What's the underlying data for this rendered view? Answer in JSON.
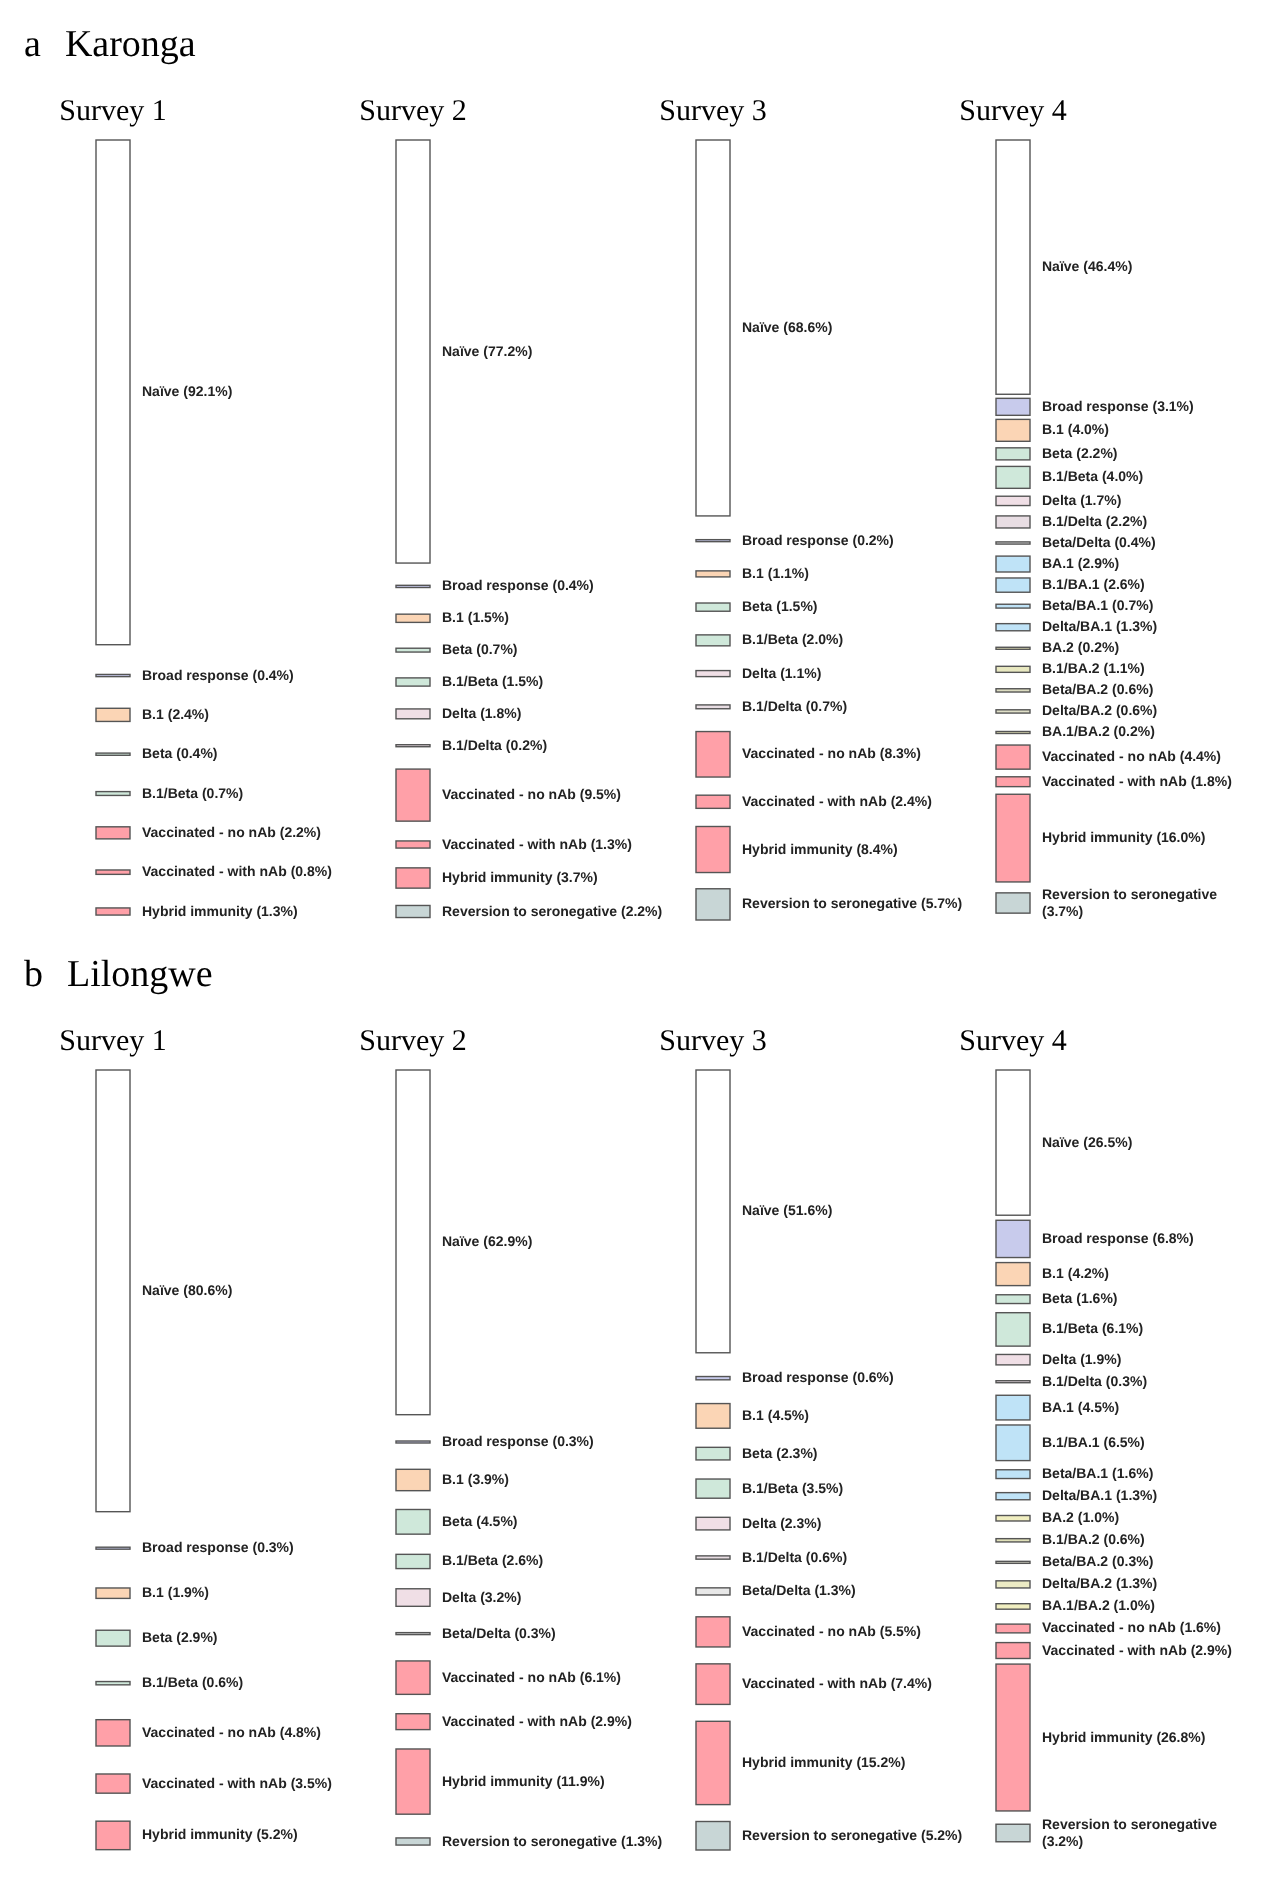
{
  "chart_data": [
    {
      "type": "other",
      "subtitle": "Karonga",
      "annotations": [
        "a"
      ],
      "title": "Survey 1",
      "categories": [
        "Naïve",
        "Broad response",
        "B.1",
        "Beta",
        "B.1/Beta",
        "Vaccinated - no nAb",
        "Vaccinated - with nAb",
        "Hybrid immunity"
      ],
      "values": [
        92.1,
        0.4,
        2.4,
        0.4,
        0.7,
        2.2,
        0.8,
        1.3
      ],
      "value_labels": [
        "(92.1%)",
        "(0.4%)",
        "(2.4%)",
        "(0.4%)",
        "(0.7%)",
        "(2.2%)",
        "(0.8%)",
        "(1.3%)"
      ],
      "colors": [
        "#ffffff",
        "#c8cbec",
        "#fbd5b5",
        "#cfe8da",
        "#cfe8da",
        "#ffa0a8",
        "#ffa0a8",
        "#ffa0a8"
      ]
    },
    {
      "type": "other",
      "title": "Survey 2",
      "categories": [
        "Naïve",
        "Broad response",
        "B.1",
        "Beta",
        "B.1/Beta",
        "Delta",
        "B.1/Delta",
        "Vaccinated - no nAb",
        "Vaccinated - with nAb",
        "Hybrid immunity",
        "Reversion to seronegative"
      ],
      "values": [
        77.2,
        0.4,
        1.5,
        0.7,
        1.5,
        1.8,
        0.2,
        9.5,
        1.3,
        3.7,
        2.2
      ],
      "value_labels": [
        "(77.2%)",
        "(0.4%)",
        "(1.5%)",
        "(0.7%)",
        "(1.5%)",
        "(1.8%)",
        "(0.2%)",
        "(9.5%)",
        "(1.3%)",
        "(3.7%)",
        "(2.2%)"
      ],
      "colors": [
        "#ffffff",
        "#c8cbec",
        "#fbd5b5",
        "#cfe8da",
        "#cfe8da",
        "#f0dfe6",
        "#e8dde3",
        "#ffa0a8",
        "#ffa0a8",
        "#ffa0a8",
        "#c8d6d6"
      ]
    },
    {
      "type": "other",
      "title": "Survey 3",
      "categories": [
        "Naïve",
        "Broad response",
        "B.1",
        "Beta",
        "B.1/Beta",
        "Delta",
        "B.1/Delta",
        "Vaccinated - no nAb",
        "Vaccinated - with nAb",
        "Hybrid immunity",
        "Reversion to seronegative"
      ],
      "values": [
        68.6,
        0.2,
        1.1,
        1.5,
        2.0,
        1.1,
        0.7,
        8.3,
        2.4,
        8.4,
        5.7
      ],
      "value_labels": [
        "(68.6%)",
        "(0.2%)",
        "(1.1%)",
        "(1.5%)",
        "(2.0%)",
        "(1.1%)",
        "(0.7%)",
        "(8.3%)",
        "(2.4%)",
        "(8.4%)",
        "(5.7%)"
      ],
      "colors": [
        "#ffffff",
        "#c8cbec",
        "#fbd5b5",
        "#cfe8da",
        "#cfe8da",
        "#f0dfe6",
        "#e8dde3",
        "#ffa0a8",
        "#ffa0a8",
        "#ffa0a8",
        "#c8d6d6"
      ]
    },
    {
      "type": "other",
      "title": "Survey 4",
      "categories": [
        "Naïve",
        "Broad response",
        "B.1",
        "Beta",
        "B.1/Beta",
        "Delta",
        "B.1/Delta",
        "Beta/Delta",
        "BA.1",
        "B.1/BA.1",
        "Beta/BA.1",
        "Delta/BA.1",
        "BA.2",
        "B.1/BA.2",
        "Beta/BA.2",
        "Delta/BA.2",
        "BA.1/BA.2",
        "Vaccinated - no nAb",
        "Vaccinated - with nAb",
        "Hybrid immunity",
        "Reversion to seronegative"
      ],
      "values": [
        46.4,
        3.1,
        4.0,
        2.2,
        4.0,
        1.7,
        2.2,
        0.4,
        2.9,
        2.6,
        0.7,
        1.3,
        0.2,
        1.1,
        0.6,
        0.6,
        0.2,
        4.4,
        1.8,
        16.0,
        3.7
      ],
      "value_labels": [
        "(46.4%)",
        "(3.1%)",
        "(4.0%)",
        "(2.2%)",
        "(4.0%)",
        "(1.7%)",
        "(2.2%)",
        "(0.4%)",
        "(2.9%)",
        "(2.6%)",
        "(0.7%)",
        "(1.3%)",
        "(0.2%)",
        "(1.1%)",
        "(0.6%)",
        "(0.6%)",
        "(0.2%)",
        "(4.4%)",
        "(1.8%)",
        "(16.0%)",
        "(3.7%)"
      ],
      "colors": [
        "#ffffff",
        "#c8cbec",
        "#fbd5b5",
        "#cfe8da",
        "#cfe8da",
        "#f0dfe6",
        "#e8dde3",
        "#d8d8d8",
        "#bfe3f7",
        "#bfe3f7",
        "#bfe3f7",
        "#bfe3f7",
        "#f0eec0",
        "#e8e8c0",
        "#dcdcc0",
        "#e0e0c8",
        "#f0eec0",
        "#ffa0a8",
        "#ffa0a8",
        "#ffa0a8",
        "#c8d6d6"
      ]
    },
    {
      "type": "other",
      "subtitle": "Lilongwe",
      "annotations": [
        "b"
      ],
      "title": "Survey 1",
      "categories": [
        "Naïve",
        "Broad response",
        "B.1",
        "Beta",
        "B.1/Beta",
        "Vaccinated - no nAb",
        "Vaccinated - with nAb",
        "Hybrid immunity"
      ],
      "values": [
        80.6,
        0.3,
        1.9,
        2.9,
        0.6,
        4.8,
        3.5,
        5.2
      ],
      "value_labels": [
        "(80.6%)",
        "(0.3%)",
        "(1.9%)",
        "(2.9%)",
        "(0.6%)",
        "(4.8%)",
        "(3.5%)",
        "(5.2%)"
      ],
      "colors": [
        "#ffffff",
        "#c8cbec",
        "#fbd5b5",
        "#cfe8da",
        "#cfe8da",
        "#ffa0a8",
        "#ffa0a8",
        "#ffa0a8"
      ]
    },
    {
      "type": "other",
      "title": "Survey 2",
      "categories": [
        "Naïve",
        "Broad response",
        "B.1",
        "Beta",
        "B.1/Beta",
        "Delta",
        "Beta/Delta",
        "Vaccinated - no nAb",
        "Vaccinated - with nAb",
        "Hybrid immunity",
        "Reversion to seronegative"
      ],
      "values": [
        62.9,
        0.3,
        3.9,
        4.5,
        2.6,
        3.2,
        0.3,
        6.1,
        2.9,
        11.9,
        1.3
      ],
      "value_labels": [
        "(62.9%)",
        "(0.3%)",
        "(3.9%)",
        "(4.5%)",
        "(2.6%)",
        "(3.2%)",
        "(0.3%)",
        "(6.1%)",
        "(2.9%)",
        "(11.9%)",
        "(1.3%)"
      ],
      "colors": [
        "#ffffff",
        "#c8cbec",
        "#fbd5b5",
        "#cfe8da",
        "#cfe8da",
        "#f0dfe6",
        "#d8d8d8",
        "#ffa0a8",
        "#ffa0a8",
        "#ffa0a8",
        "#c8d6d6"
      ]
    },
    {
      "type": "other",
      "title": "Survey 3",
      "categories": [
        "Naïve",
        "Broad response",
        "B.1",
        "Beta",
        "B.1/Beta",
        "Delta",
        "B.1/Delta",
        "Beta/Delta",
        "Vaccinated - no nAb",
        "Vaccinated - with nAb",
        "Hybrid immunity",
        "Reversion to seronegative"
      ],
      "values": [
        51.6,
        0.6,
        4.5,
        2.3,
        3.5,
        2.3,
        0.6,
        1.3,
        5.5,
        7.4,
        15.2,
        5.2
      ],
      "value_labels": [
        "(51.6%)",
        "(0.6%)",
        "(4.5%)",
        "(2.3%)",
        "(3.5%)",
        "(2.3%)",
        "(0.6%)",
        "(1.3%)",
        "(5.5%)",
        "(7.4%)",
        "(15.2%)",
        "(5.2%)"
      ],
      "colors": [
        "#ffffff",
        "#c8cbec",
        "#fbd5b5",
        "#cfe8da",
        "#cfe8da",
        "#f0dfe6",
        "#e8dde3",
        "#e8e8e8",
        "#ffa0a8",
        "#ffa0a8",
        "#ffa0a8",
        "#c8d6d6"
      ]
    },
    {
      "type": "other",
      "title": "Survey 4",
      "categories": [
        "Naïve",
        "Broad response",
        "B.1",
        "Beta",
        "B.1/Beta",
        "Delta",
        "B.1/Delta",
        "BA.1",
        "B.1/BA.1",
        "Beta/BA.1",
        "Delta/BA.1",
        "BA.2",
        "B.1/BA.2",
        "Beta/BA.2",
        "Delta/BA.2",
        "BA.1/BA.2",
        "Vaccinated - no nAb",
        "Vaccinated - with nAb",
        "Hybrid immunity",
        "Reversion to seronegative"
      ],
      "values": [
        26.5,
        6.8,
        4.2,
        1.6,
        6.1,
        1.9,
        0.3,
        4.5,
        6.5,
        1.6,
        1.3,
        1.0,
        0.6,
        0.3,
        1.3,
        1.0,
        1.6,
        2.9,
        26.8,
        3.2
      ],
      "value_labels": [
        "(26.5%)",
        "(6.8%)",
        "(4.2%)",
        "(1.6%)",
        "(6.1%)",
        "(1.9%)",
        "(0.3%)",
        "(4.5%)",
        "(6.5%)",
        "(1.6%)",
        "(1.3%)",
        "(1.0%)",
        "(0.6%)",
        "(0.3%)",
        "(1.3%)",
        "(1.0%)",
        "(1.6%)",
        "(2.9%)",
        "(26.8%)",
        "(3.2%)"
      ],
      "colors": [
        "#ffffff",
        "#c8cbec",
        "#fbd5b5",
        "#cfe8da",
        "#cfe8da",
        "#f0dfe6",
        "#e8dde3",
        "#bfe3f7",
        "#bfe3f7",
        "#bfe3f7",
        "#bfe3f7",
        "#f0eec0",
        "#e0e0b8",
        "#d8d8c8",
        "#ecebc4",
        "#f0eec0",
        "#ffa0a8",
        "#ffa0a8",
        "#ffa0a8",
        "#c8d6d6"
      ]
    }
  ]
}
